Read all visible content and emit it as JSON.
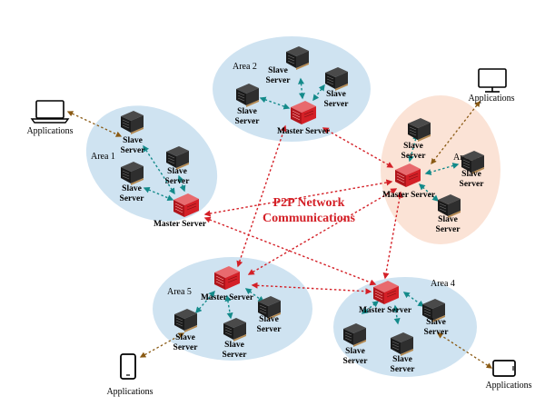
{
  "colors": {
    "area_blue": "#cfe3f1",
    "area_orange": "#fbe3d6",
    "p2p_link": "#d42027",
    "master_link": "#138a8a",
    "app_link": "#8a5a14",
    "master_server": "#d42027",
    "slave_server": "#2b2b2b"
  },
  "icons": {
    "master": "master-server-icon",
    "slave": "slave-server-icon",
    "laptop": "laptop-icon",
    "monitor": "monitor-icon",
    "phone": "smartphone-icon",
    "tablet": "tablet-icon"
  },
  "p2p_label": {
    "line1": "P2P Network",
    "line2": "Communications"
  },
  "slave_label": {
    "line1": "Slave",
    "line2": "Server"
  },
  "master_label": "Master Server",
  "areas": [
    {
      "label": "Area 1"
    },
    {
      "label": "Area 2"
    },
    {
      "label": "Area 3"
    },
    {
      "label": "Area 4"
    },
    {
      "label": "Area 5"
    }
  ],
  "applications": [
    {
      "label": "Applications",
      "device": "laptop-icon"
    },
    {
      "label": "Applications",
      "device": "monitor-icon"
    },
    {
      "label": "Applications",
      "device": "smartphone-icon"
    },
    {
      "label": "Applications",
      "device": "tablet-icon"
    }
  ]
}
